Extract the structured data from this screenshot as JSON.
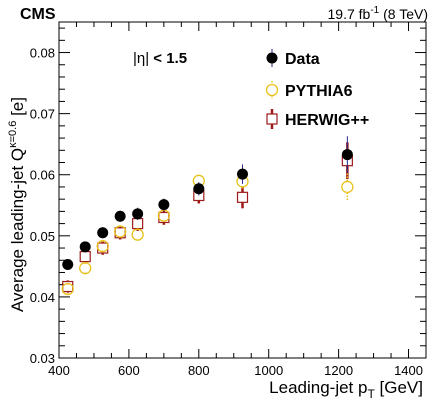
{
  "header": {
    "experiment": "CMS",
    "luminosity_prefix": "19.7 fb",
    "luminosity_exp": "-1",
    "energy": " (8 TeV)"
  },
  "annotation": {
    "eta_prefix": "|η|",
    "eta_suffix": " < 1.5"
  },
  "colors": {
    "data": "#000000",
    "pythia": "#e8c21c",
    "herwig": "#9e1b1b"
  },
  "chart_data": {
    "type": "scatter",
    "title": "",
    "xlabel": {
      "main": "Leading-jet p",
      "sub": "T",
      "unit": " [GeV]"
    },
    "ylabel": {
      "main": "Average leading-jet Q",
      "sup": "κ=0.6",
      "unit": " [e]"
    },
    "xlim": [
      400,
      1450
    ],
    "ylim": [
      0.03,
      0.085
    ],
    "xticks": [
      400,
      600,
      800,
      1000,
      1200,
      1400
    ],
    "yticks": [
      0.03,
      0.04,
      0.05,
      0.06,
      0.07,
      0.08
    ],
    "ytick_labels": [
      "0.03",
      "0.04",
      "0.05",
      "0.06",
      "0.07",
      "0.08"
    ],
    "legend_position": "top-right",
    "series": [
      {
        "name": "Data",
        "marker": "filled-circle",
        "x": [
          425,
          475,
          525,
          575,
          625,
          700,
          800,
          925,
          1225
        ],
        "y": [
          0.0453,
          0.0482,
          0.0505,
          0.0532,
          0.0536,
          0.0551,
          0.0577,
          0.0601,
          0.0633
        ],
        "err": [
          0.0008,
          0.0008,
          0.0009,
          0.0009,
          0.001,
          0.001,
          0.0011,
          0.0016,
          0.003
        ]
      },
      {
        "name": "PYTHIA6",
        "marker": "open-circle",
        "x": [
          425,
          475,
          525,
          575,
          625,
          700,
          800,
          925,
          1225
        ],
        "y": [
          0.0413,
          0.0447,
          0.0483,
          0.0507,
          0.0502,
          0.0533,
          0.059,
          0.0589,
          0.058
        ],
        "err": [
          0.0007,
          0.0007,
          0.0007,
          0.0008,
          0.0008,
          0.0008,
          0.0009,
          0.0012,
          0.0022
        ]
      },
      {
        "name": "HERWIG++",
        "marker": "open-square",
        "x": [
          425,
          475,
          525,
          575,
          625,
          700,
          800,
          925,
          1225
        ],
        "y": [
          0.0417,
          0.0466,
          0.048,
          0.0505,
          0.052,
          0.053,
          0.0566,
          0.0563,
          0.0623
        ],
        "err": [
          0.001,
          0.001,
          0.0011,
          0.0011,
          0.0012,
          0.0012,
          0.0013,
          0.0018,
          0.003
        ]
      }
    ]
  }
}
